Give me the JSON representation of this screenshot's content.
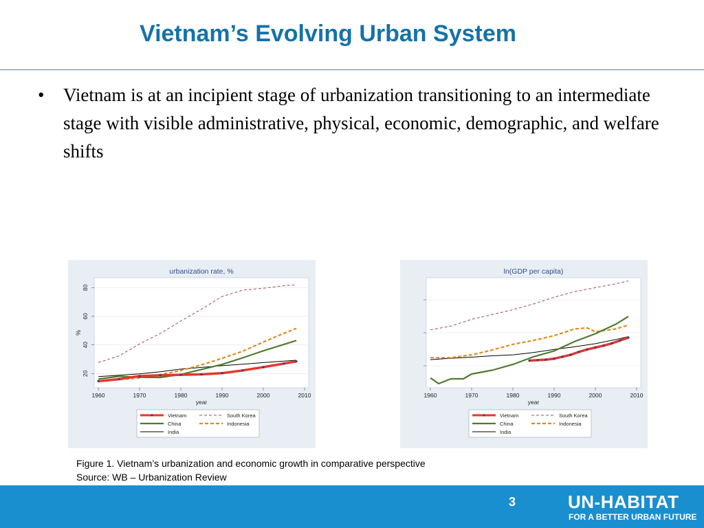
{
  "slide": {
    "title": "Vietnam’s Evolving Urban System",
    "bullet_symbol": "•",
    "bullet": "Vietnam is at an incipient stage of urbanization transitioning to an intermediate stage with visible administrative, physical, economic, demographic, and welfare shifts",
    "caption_line1": "Figure 1. Vietnam’s urbanization and economic growth in comparative perspective",
    "caption_line2": "Source: WB – Urbanization Review",
    "page_number": "3",
    "logo_text": "UN-HABITAT",
    "logo_tagline": "FOR A BETTER URBAN FUTURE"
  },
  "colors": {
    "title": "#1572a8",
    "footer": "#1a8fd0",
    "chart_panel": "#e8eef3",
    "Vietnam": "#e8352b",
    "Vietnam_markers": "#2b3f8a",
    "South Korea": "#a04a5a",
    "China": "#4e7a2e",
    "Indonesia": "#e08a1a",
    "India": "#000000"
  },
  "chart_data": [
    {
      "type": "line",
      "title": "urbanization rate, %",
      "xlabel": "year",
      "ylabel": "%",
      "xlim": [
        1960,
        2010
      ],
      "ylim": [
        13,
        84
      ],
      "xticks": [
        1960,
        1970,
        1980,
        1990,
        2000,
        2010
      ],
      "yticks": [
        20,
        40,
        60,
        80
      ],
      "grid": true,
      "legend": "bottom",
      "series": [
        {
          "name": "Vietnam",
          "x": [
            1960,
            1965,
            1970,
            1975,
            1980,
            1985,
            1990,
            1995,
            2000,
            2005,
            2008
          ],
          "y": [
            14.7,
            16.1,
            18.3,
            18.8,
            19.2,
            19.5,
            20.3,
            22.2,
            24.5,
            27.0,
            28.5
          ]
        },
        {
          "name": "South Korea",
          "x": [
            1960,
            1965,
            1970,
            1975,
            1980,
            1985,
            1990,
            1995,
            2000,
            2005,
            2008
          ],
          "y": [
            27.7,
            32.4,
            40.7,
            48.0,
            56.7,
            64.9,
            73.8,
            78.2,
            79.6,
            81.3,
            81.9
          ]
        },
        {
          "name": "China",
          "x": [
            1960,
            1965,
            1970,
            1975,
            1980,
            1985,
            1990,
            1995,
            2000,
            2005,
            2008
          ],
          "y": [
            16.2,
            18.1,
            17.4,
            17.3,
            19.4,
            22.9,
            26.4,
            31.0,
            35.9,
            40.4,
            43.1
          ]
        },
        {
          "name": "Indonesia",
          "x": [
            1960,
            1965,
            1970,
            1975,
            1980,
            1985,
            1990,
            1995,
            2000,
            2005,
            2008
          ],
          "y": [
            14.6,
            15.8,
            17.1,
            19.3,
            22.1,
            26.1,
            30.6,
            35.6,
            42.0,
            48.1,
            51.5
          ]
        },
        {
          "name": "India",
          "x": [
            1960,
            1965,
            1970,
            1975,
            1980,
            1985,
            1990,
            1995,
            2000,
            2005,
            2008
          ],
          "y": [
            17.9,
            18.8,
            19.8,
            21.3,
            23.1,
            24.3,
            25.5,
            26.6,
            27.7,
            28.7,
            29.3
          ]
        }
      ]
    },
    {
      "type": "line",
      "title": "ln(GDP per capita)",
      "xlabel": "year",
      "xlim": [
        1960,
        2010
      ],
      "ylim": [
        5.0,
        10.3
      ],
      "xticks": [
        1960,
        1970,
        1980,
        1990,
        2000,
        2010
      ],
      "yticks": [],
      "grid": true,
      "legend": "bottom",
      "series": [
        {
          "name": "Vietnam",
          "x": [
            1984,
            1986,
            1988,
            1990,
            1992,
            1994,
            1996,
            1998,
            2000,
            2002,
            2004,
            2006,
            2008
          ],
          "y": [
            6.2,
            6.22,
            6.25,
            6.3,
            6.4,
            6.5,
            6.65,
            6.78,
            6.88,
            6.98,
            7.1,
            7.25,
            7.4
          ]
        },
        {
          "name": "South Korea",
          "x": [
            1960,
            1965,
            1970,
            1975,
            1980,
            1985,
            1990,
            1995,
            2000,
            2005,
            2008
          ],
          "y": [
            7.8,
            8.0,
            8.35,
            8.6,
            8.85,
            9.15,
            9.5,
            9.8,
            10.0,
            10.2,
            10.35
          ]
        },
        {
          "name": "China",
          "x": [
            1960,
            1962,
            1965,
            1968,
            1970,
            1975,
            1980,
            1985,
            1990,
            1995,
            2000,
            2005,
            2008
          ],
          "y": [
            5.3,
            5.0,
            5.25,
            5.25,
            5.5,
            5.7,
            6.0,
            6.4,
            6.7,
            7.2,
            7.6,
            8.1,
            8.5
          ]
        },
        {
          "name": "Indonesia",
          "x": [
            1960,
            1965,
            1970,
            1975,
            1980,
            1985,
            1990,
            1995,
            1998,
            2000,
            2005,
            2008
          ],
          "y": [
            6.35,
            6.35,
            6.5,
            6.75,
            7.05,
            7.25,
            7.5,
            7.85,
            7.9,
            7.7,
            7.85,
            8.05
          ]
        },
        {
          "name": "India",
          "x": [
            1960,
            1965,
            1970,
            1975,
            1980,
            1985,
            1990,
            1995,
            2000,
            2005,
            2008
          ],
          "y": [
            6.25,
            6.32,
            6.38,
            6.45,
            6.5,
            6.62,
            6.78,
            6.92,
            7.08,
            7.3,
            7.45
          ]
        }
      ]
    }
  ]
}
